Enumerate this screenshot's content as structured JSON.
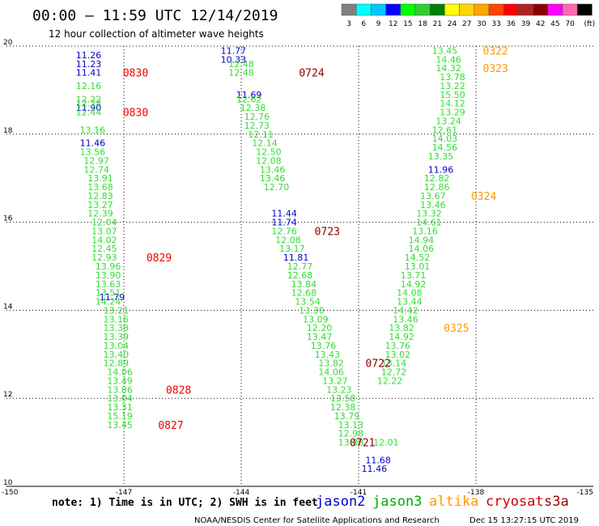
{
  "header": {
    "title": "00:00 – 11:59 UTC 12/14/2019",
    "subtitle": "12 hour collection of altimeter wave heights"
  },
  "colorbar": {
    "labels": [
      "3",
      "6",
      "9",
      "12",
      "15",
      "18",
      "21",
      "24",
      "27",
      "30",
      "33",
      "36",
      "39",
      "42",
      "45",
      "70",
      "(ft)"
    ],
    "colors": [
      "#808080",
      "#00ffff",
      "#00c8ff",
      "#0000ff",
      "#00ff00",
      "#32cd32",
      "#008000",
      "#ffff00",
      "#ffd700",
      "#ffa500",
      "#ff4500",
      "#ff0000",
      "#b22222",
      "#8b0000",
      "#ff00ff",
      "#ff69b4",
      "#000000"
    ]
  },
  "footer": {
    "note": "note:  1) Time is in UTC;  2) SWH is in feet",
    "legend": [
      {
        "name": "jason2",
        "color": "#0000cc"
      },
      {
        "name": "jason3",
        "color": "#00aa00"
      },
      {
        "name": "altika",
        "color": "#ff9900"
      },
      {
        "name": "cryosat",
        "color": "#cc0000"
      },
      {
        "name": "s3a",
        "color": "#990000"
      }
    ],
    "credit": "NOAA/NESDIS Center for Satellite Applications and Research",
    "timestamp": "Dec 15 13:27:15 UTC 2019"
  },
  "chart_data": {
    "type": "scatter",
    "xlim": [
      -150,
      -135
    ],
    "ylim": [
      10,
      20
    ],
    "x_ticks": [
      "-150",
      "-147",
      "-144",
      "-141",
      "-138",
      "-135"
    ],
    "y_ticks": [
      "10",
      "12",
      "14",
      "16",
      "18",
      "20"
    ],
    "colors": {
      "jason2": "#0000cc",
      "jason3": "#33dd33",
      "altika": "#ff9900",
      "cryosat": "#ee0000",
      "s3a": "#880000"
    },
    "series": [
      {
        "name": "jason2",
        "points": [
          {
            "x": -147.9,
            "y": 19.8,
            "v": "11.26"
          },
          {
            "x": -147.9,
            "y": 19.6,
            "v": "11.23"
          },
          {
            "x": -147.9,
            "y": 19.4,
            "v": "11.41"
          },
          {
            "x": -147.9,
            "y": 18.6,
            "v": "11.90"
          },
          {
            "x": -147.8,
            "y": 17.8,
            "v": "11.46"
          },
          {
            "x": -147.3,
            "y": 14.3,
            "v": "11.79"
          },
          {
            "x": -144.2,
            "y": 19.9,
            "v": "11.77"
          },
          {
            "x": -144.2,
            "y": 19.7,
            "v": "10.33"
          },
          {
            "x": -143.8,
            "y": 18.9,
            "v": "11.69"
          },
          {
            "x": -142.9,
            "y": 16.2,
            "v": "11.44"
          },
          {
            "x": -142.9,
            "y": 16.0,
            "v": "11.74"
          },
          {
            "x": -142.6,
            "y": 15.2,
            "v": "11.81"
          },
          {
            "x": -140.5,
            "y": 10.6,
            "v": "11.68"
          },
          {
            "x": -140.6,
            "y": 10.4,
            "v": "11.46"
          },
          {
            "x": -138.9,
            "y": 17.2,
            "v": "11.96"
          }
        ]
      },
      {
        "name": "jason3",
        "points": [
          {
            "x": -147.9,
            "y": 19.1,
            "v": "12.16"
          },
          {
            "x": -147.9,
            "y": 18.8,
            "v": "12.22"
          },
          {
            "x": -147.9,
            "y": 18.7,
            "v": "12.28"
          },
          {
            "x": -147.9,
            "y": 18.5,
            "v": "12.44"
          },
          {
            "x": -147.8,
            "y": 18.1,
            "v": "13.16"
          },
          {
            "x": -147.8,
            "y": 17.6,
            "v": "13.56"
          },
          {
            "x": -147.7,
            "y": 17.4,
            "v": "12.97"
          },
          {
            "x": -147.7,
            "y": 17.2,
            "v": "12.74"
          },
          {
            "x": -147.6,
            "y": 17.0,
            "v": "13.91"
          },
          {
            "x": -147.6,
            "y": 16.8,
            "v": "13.68"
          },
          {
            "x": -147.6,
            "y": 16.6,
            "v": "12.83"
          },
          {
            "x": -147.6,
            "y": 16.4,
            "v": "13.27"
          },
          {
            "x": -147.6,
            "y": 16.2,
            "v": "12.39"
          },
          {
            "x": -147.5,
            "y": 16.0,
            "v": "12.04"
          },
          {
            "x": -147.5,
            "y": 15.8,
            "v": "13.07"
          },
          {
            "x": -147.5,
            "y": 15.6,
            "v": "14.02"
          },
          {
            "x": -147.5,
            "y": 15.4,
            "v": "12.45"
          },
          {
            "x": -147.5,
            "y": 15.2,
            "v": "12.93"
          },
          {
            "x": -147.4,
            "y": 15.0,
            "v": "13.96"
          },
          {
            "x": -147.4,
            "y": 14.8,
            "v": "13.90"
          },
          {
            "x": -147.4,
            "y": 14.6,
            "v": "13.63"
          },
          {
            "x": -147.4,
            "y": 14.4,
            "v": "13.51"
          },
          {
            "x": -147.4,
            "y": 14.2,
            "v": "14.24"
          },
          {
            "x": -147.2,
            "y": 14.0,
            "v": "13.21"
          },
          {
            "x": -147.2,
            "y": 13.8,
            "v": "13.16"
          },
          {
            "x": -147.2,
            "y": 13.6,
            "v": "13.38"
          },
          {
            "x": -147.2,
            "y": 13.4,
            "v": "13.39"
          },
          {
            "x": -147.2,
            "y": 13.2,
            "v": "13.04"
          },
          {
            "x": -147.2,
            "y": 13.0,
            "v": "13.40"
          },
          {
            "x": -147.2,
            "y": 12.8,
            "v": "12.89"
          },
          {
            "x": -147.1,
            "y": 12.6,
            "v": "14.06"
          },
          {
            "x": -147.1,
            "y": 12.4,
            "v": "13.49"
          },
          {
            "x": -147.1,
            "y": 12.2,
            "v": "13.86"
          },
          {
            "x": -147.1,
            "y": 12.0,
            "v": "13.04"
          },
          {
            "x": -147.1,
            "y": 11.8,
            "v": "13.31"
          },
          {
            "x": -147.1,
            "y": 11.6,
            "v": "15.19"
          },
          {
            "x": -147.1,
            "y": 11.4,
            "v": "13.45"
          },
          {
            "x": -144.0,
            "y": 19.6,
            "v": "12.48"
          },
          {
            "x": -144.0,
            "y": 19.4,
            "v": "12.48"
          },
          {
            "x": -143.8,
            "y": 18.8,
            "v": "12.62"
          },
          {
            "x": -143.7,
            "y": 18.6,
            "v": "12.38"
          },
          {
            "x": -143.6,
            "y": 18.4,
            "v": "12.76"
          },
          {
            "x": -143.6,
            "y": 18.2,
            "v": "12.73"
          },
          {
            "x": -143.5,
            "y": 18.0,
            "v": "12.11"
          },
          {
            "x": -143.4,
            "y": 17.8,
            "v": "12.14"
          },
          {
            "x": -143.3,
            "y": 17.6,
            "v": "12.50"
          },
          {
            "x": -143.3,
            "y": 17.4,
            "v": "12.08"
          },
          {
            "x": -143.2,
            "y": 17.2,
            "v": "13.46"
          },
          {
            "x": -143.2,
            "y": 17.0,
            "v": "13.46"
          },
          {
            "x": -143.1,
            "y": 16.8,
            "v": "12.70"
          },
          {
            "x": -142.9,
            "y": 15.8,
            "v": "12.76"
          },
          {
            "x": -142.8,
            "y": 15.6,
            "v": "12.08"
          },
          {
            "x": -142.7,
            "y": 15.4,
            "v": "13.17"
          },
          {
            "x": -142.5,
            "y": 15.0,
            "v": "12.77"
          },
          {
            "x": -142.5,
            "y": 14.8,
            "v": "12.68"
          },
          {
            "x": -142.4,
            "y": 14.6,
            "v": "13.84"
          },
          {
            "x": -142.4,
            "y": 14.4,
            "v": "12.68"
          },
          {
            "x": -142.3,
            "y": 14.2,
            "v": "13.54"
          },
          {
            "x": -142.2,
            "y": 14.0,
            "v": "13.30"
          },
          {
            "x": -142.1,
            "y": 13.8,
            "v": "13.09"
          },
          {
            "x": -142.0,
            "y": 13.6,
            "v": "12.20"
          },
          {
            "x": -142.0,
            "y": 13.4,
            "v": "13.47"
          },
          {
            "x": -141.9,
            "y": 13.2,
            "v": "13.76"
          },
          {
            "x": -141.8,
            "y": 13.0,
            "v": "13.43"
          },
          {
            "x": -141.7,
            "y": 12.8,
            "v": "13.82"
          },
          {
            "x": -141.7,
            "y": 12.6,
            "v": "14.06"
          },
          {
            "x": -141.6,
            "y": 12.4,
            "v": "13.27"
          },
          {
            "x": -141.5,
            "y": 12.2,
            "v": "13.23"
          },
          {
            "x": -141.4,
            "y": 12.0,
            "v": "13.58"
          },
          {
            "x": -141.4,
            "y": 11.8,
            "v": "12.38"
          },
          {
            "x": -141.3,
            "y": 11.6,
            "v": "13.79"
          },
          {
            "x": -141.2,
            "y": 11.4,
            "v": "13.13"
          },
          {
            "x": -141.2,
            "y": 11.2,
            "v": "12.98"
          },
          {
            "x": -141.2,
            "y": 11.0,
            "v": "13.08"
          },
          {
            "x": -138.8,
            "y": 19.9,
            "v": "13.45"
          },
          {
            "x": -138.7,
            "y": 19.7,
            "v": "14.46"
          },
          {
            "x": -138.7,
            "y": 19.5,
            "v": "14.32"
          },
          {
            "x": -138.6,
            "y": 19.3,
            "v": "13.78"
          },
          {
            "x": -138.6,
            "y": 19.1,
            "v": "13.22"
          },
          {
            "x": -138.6,
            "y": 18.9,
            "v": "15.50"
          },
          {
            "x": -138.6,
            "y": 18.7,
            "v": "14.12"
          },
          {
            "x": -138.6,
            "y": 18.5,
            "v": "13.29"
          },
          {
            "x": -138.7,
            "y": 18.3,
            "v": "13.24"
          },
          {
            "x": -138.8,
            "y": 18.1,
            "v": "12.61"
          },
          {
            "x": -138.8,
            "y": 17.9,
            "v": "14.03"
          },
          {
            "x": -138.8,
            "y": 17.7,
            "v": "14.56"
          },
          {
            "x": -138.9,
            "y": 17.5,
            "v": "13.35"
          },
          {
            "x": -139.0,
            "y": 17.0,
            "v": "12.82"
          },
          {
            "x": -139.0,
            "y": 16.8,
            "v": "12.86"
          },
          {
            "x": -139.1,
            "y": 16.6,
            "v": "13.67"
          },
          {
            "x": -139.1,
            "y": 16.4,
            "v": "13.46"
          },
          {
            "x": -139.2,
            "y": 16.2,
            "v": "13.32"
          },
          {
            "x": -139.2,
            "y": 16.0,
            "v": "14.61"
          },
          {
            "x": -139.3,
            "y": 15.8,
            "v": "13.16"
          },
          {
            "x": -139.4,
            "y": 15.6,
            "v": "14.94"
          },
          {
            "x": -139.4,
            "y": 15.4,
            "v": "14.06"
          },
          {
            "x": -139.5,
            "y": 15.2,
            "v": "14.52"
          },
          {
            "x": -139.5,
            "y": 15.0,
            "v": "13.01"
          },
          {
            "x": -139.6,
            "y": 14.8,
            "v": "13.71"
          },
          {
            "x": -139.6,
            "y": 14.6,
            "v": "14.92"
          },
          {
            "x": -139.7,
            "y": 14.4,
            "v": "14.08"
          },
          {
            "x": -139.7,
            "y": 14.2,
            "v": "13.44"
          },
          {
            "x": -139.8,
            "y": 14.0,
            "v": "14.42"
          },
          {
            "x": -139.8,
            "y": 13.8,
            "v": "13.46"
          },
          {
            "x": -139.9,
            "y": 13.6,
            "v": "13.82"
          },
          {
            "x": -139.9,
            "y": 13.4,
            "v": "14.92"
          },
          {
            "x": -140.0,
            "y": 13.2,
            "v": "13.76"
          },
          {
            "x": -140.0,
            "y": 13.0,
            "v": "13.02"
          },
          {
            "x": -140.1,
            "y": 12.8,
            "v": "13.14"
          },
          {
            "x": -140.1,
            "y": 12.6,
            "v": "12.72"
          },
          {
            "x": -140.2,
            "y": 12.4,
            "v": "12.22"
          },
          {
            "x": -140.3,
            "y": 11.0,
            "v": "12.01"
          }
        ]
      }
    ],
    "time_labels": [
      {
        "x": -146.7,
        "y": 19.4,
        "text": "0830",
        "series": "cryosat"
      },
      {
        "x": -146.7,
        "y": 18.5,
        "text": "0830",
        "series": "cryosat"
      },
      {
        "x": -146.1,
        "y": 15.2,
        "text": "0829",
        "series": "cryosat"
      },
      {
        "x": -145.6,
        "y": 12.2,
        "text": "0828",
        "series": "cryosat"
      },
      {
        "x": -145.8,
        "y": 11.4,
        "text": "0827",
        "series": "cryosat"
      },
      {
        "x": -142.2,
        "y": 19.4,
        "text": "0724",
        "series": "s3a"
      },
      {
        "x": -141.8,
        "y": 15.8,
        "text": "0723",
        "series": "s3a"
      },
      {
        "x": -140.5,
        "y": 12.8,
        "text": "0722",
        "series": "s3a"
      },
      {
        "x": -140.9,
        "y": 11.0,
        "text": "0721",
        "series": "s3a"
      },
      {
        "x": -137.5,
        "y": 19.9,
        "text": "0322",
        "series": "altika"
      },
      {
        "x": -137.5,
        "y": 19.5,
        "text": "0323",
        "series": "altika"
      },
      {
        "x": -137.8,
        "y": 16.6,
        "text": "0324",
        "series": "altika"
      },
      {
        "x": -138.5,
        "y": 13.6,
        "text": "0325",
        "series": "altika"
      }
    ]
  }
}
